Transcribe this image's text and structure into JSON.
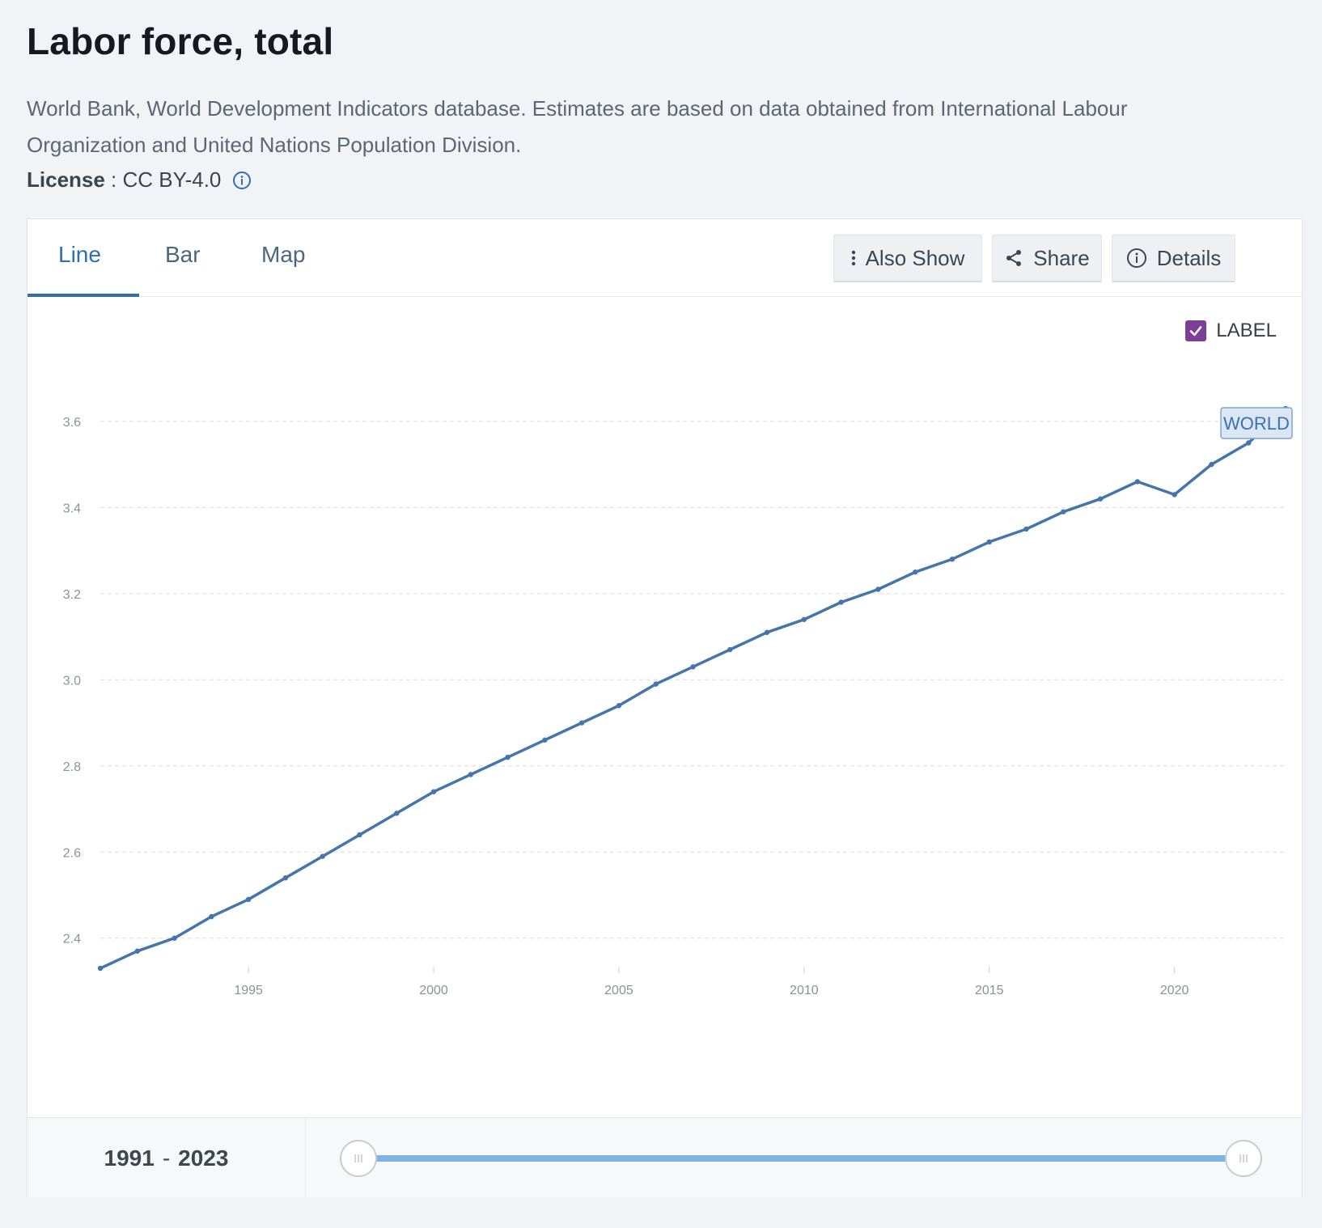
{
  "page": {
    "title": "Labor force, total",
    "source": "World Bank, World Development Indicators database. Estimates are based on data obtained from International Labour Organization and United Nations Population Division.",
    "license_label": "License",
    "license_sep": " : ",
    "license_value": "CC BY-4.0"
  },
  "tabs": [
    {
      "label": "Line",
      "active": true
    },
    {
      "label": "Bar",
      "active": false
    },
    {
      "label": "Map",
      "active": false
    }
  ],
  "toolbar": {
    "also_show_label": "Also Show",
    "share_label": "Share",
    "details_label": "Details"
  },
  "label_toggle": {
    "label": "LABEL",
    "checked": true
  },
  "range": {
    "start": "1991",
    "sep": "-",
    "end": "2023"
  },
  "colors": {
    "line": "#4575ab",
    "accent": "#2f6db5",
    "checkbox": "#7b3f98",
    "slider": "#7cb3e3"
  },
  "chart_data": {
    "type": "line",
    "title": "",
    "xlabel": "",
    "ylabel": "",
    "grid": true,
    "ylim": [
      2.33,
      3.72
    ],
    "xlim": [
      1991,
      2023
    ],
    "y_ticks": [
      2.4,
      2.6,
      2.8,
      3.0,
      3.2,
      3.4,
      3.6
    ],
    "x_ticks": [
      1995,
      2000,
      2005,
      2010,
      2015,
      2020
    ],
    "series": [
      {
        "name": "WORLD",
        "x": [
          1991,
          1992,
          1993,
          1994,
          1995,
          1996,
          1997,
          1998,
          1999,
          2000,
          2001,
          2002,
          2003,
          2004,
          2005,
          2006,
          2007,
          2008,
          2009,
          2010,
          2011,
          2012,
          2013,
          2014,
          2015,
          2016,
          2017,
          2018,
          2019,
          2020,
          2021,
          2022,
          2023
        ],
        "y": [
          2.33,
          2.37,
          2.4,
          2.45,
          2.49,
          2.54,
          2.59,
          2.64,
          2.69,
          2.74,
          2.78,
          2.82,
          2.86,
          2.9,
          2.94,
          2.99,
          3.03,
          3.07,
          3.11,
          3.14,
          3.18,
          3.21,
          3.25,
          3.28,
          3.32,
          3.35,
          3.39,
          3.42,
          3.46,
          3.43,
          3.5,
          3.55,
          3.63
        ]
      }
    ]
  }
}
